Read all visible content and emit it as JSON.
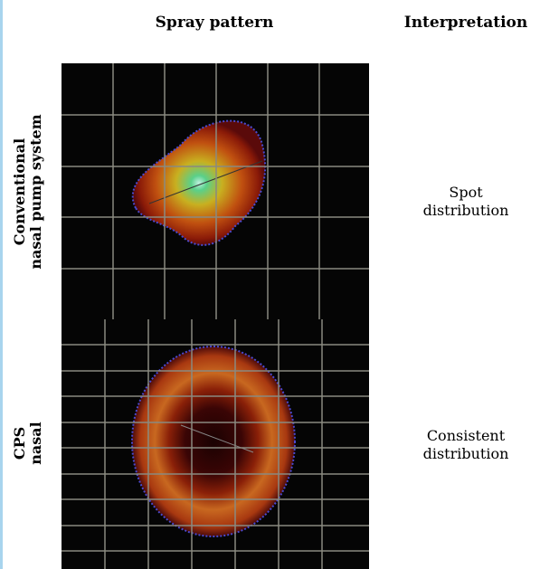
{
  "header": {
    "columns": [
      "Spray pattern",
      "Interpretation"
    ]
  },
  "rows": [
    {
      "label": [
        "Conventional",
        "nasal pump system"
      ],
      "interpretation": [
        "Spot",
        "distribution"
      ]
    },
    {
      "label": [
        "CPS",
        "nasal"
      ],
      "interpretation": [
        "Consistent",
        "distribution"
      ]
    }
  ]
}
